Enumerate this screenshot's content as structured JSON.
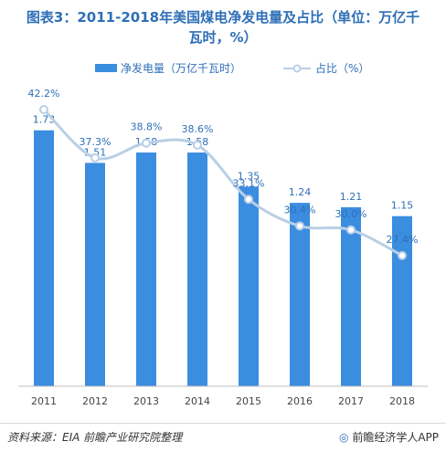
{
  "title_line1": "图表3：2011-2018年美国煤电净发电量及占比（单位：万亿千",
  "title_line2": "瓦时，%）",
  "chart_data": {
    "type": "bar",
    "categories": [
      "2011",
      "2012",
      "2013",
      "2014",
      "2015",
      "2016",
      "2017",
      "2018"
    ],
    "series": [
      {
        "name": "净发电量（万亿千瓦时）",
        "type": "bar",
        "values": [
          1.73,
          1.51,
          1.58,
          1.58,
          1.35,
          1.24,
          1.21,
          1.15
        ]
      },
      {
        "name": "占比（%）",
        "type": "line",
        "values": [
          42.2,
          37.3,
          38.8,
          38.6,
          33.1,
          30.4,
          30.0,
          27.4
        ]
      }
    ],
    "bar_labels": [
      "1.73",
      "1.51",
      "1.58",
      "1.58",
      "1.35",
      "1.24",
      "1.21",
      "1.15"
    ],
    "line_labels": [
      "42.2%",
      "37.3%",
      "38.8%",
      "38.6%",
      "33.1%",
      "30.4%",
      "30.0%",
      "27.4%"
    ],
    "legend_position": "top",
    "grid": false,
    "colors": {
      "bar": "#3b8de0",
      "line": "#b9cfe6",
      "label": "#2e6fb7",
      "axis": "#666666"
    }
  },
  "footer": {
    "source": "资料来源：EIA 前瞻产业研究院整理",
    "brand": "前瞻经济学人APP",
    "brand_mark": "◎"
  }
}
